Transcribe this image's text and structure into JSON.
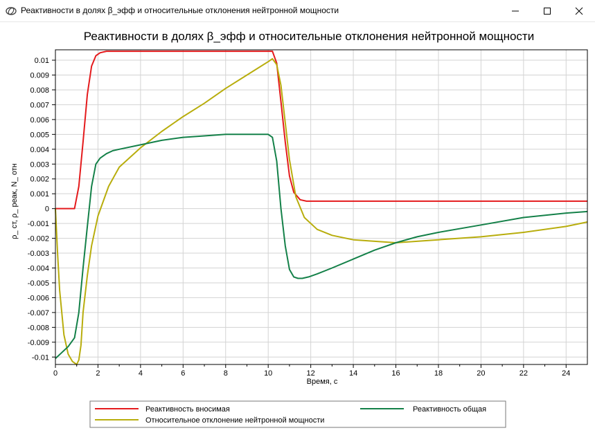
{
  "window": {
    "title": "Реактивности в долях β_эфф и относительные отклонения нейтронной мощности",
    "icon": "app-logo-icon",
    "controls": [
      "minimize-icon",
      "maximize-icon",
      "close-icon"
    ]
  },
  "colors": {
    "red": "#e41a1c",
    "green": "#138048",
    "yellow": "#b8ad0c",
    "grid": "#d3d3d3"
  },
  "chart_data": {
    "type": "line",
    "title": "Реактивности в долях β_эфф и относительные отклонения нейтронной мощности",
    "xlabel": "Время, с",
    "ylabel": "ρ_ ст, ρ_ реак, N_ отн",
    "xlim": [
      0,
      25
    ],
    "ylim": [
      -0.0105,
      0.0107
    ],
    "xticks": [
      0,
      2,
      4,
      6,
      8,
      10,
      12,
      14,
      16,
      18,
      20,
      22,
      24
    ],
    "xtick_labels": [
      "0",
      "2",
      "4",
      "6",
      "8",
      "10",
      "12",
      "14",
      "16",
      "18",
      "20",
      "22",
      "24"
    ],
    "yticks": [
      0.01,
      0.009,
      0.008,
      0.007,
      0.006,
      0.005,
      0.004,
      0.003,
      0.002,
      0.001,
      0,
      -0.001,
      -0.002,
      -0.003,
      -0.004,
      -0.005,
      -0.006,
      -0.007,
      -0.008,
      -0.009,
      -0.01
    ],
    "ytick_labels": [
      "0.01",
      "0.009",
      "0.008",
      "0.007",
      "0.006",
      "0.005",
      "0.004",
      "0.003",
      "0.002",
      "0.001",
      "0",
      "-0.001",
      "-0.002",
      "-0.003",
      "-0.004",
      "-0.005",
      "-0.006",
      "-0.007",
      "-0.008",
      "-0.009",
      "-0.01"
    ],
    "grid": true,
    "legend_position": "bottom",
    "series": [
      {
        "name": "Реактивность вносимая",
        "color": "#e41a1c",
        "x": [
          0,
          0.9,
          1.1,
          1.3,
          1.5,
          1.7,
          1.9,
          2.1,
          2.4,
          2.7,
          10.2,
          10.4,
          10.6,
          10.8,
          11.0,
          11.2,
          11.5,
          11.8,
          25
        ],
        "y": [
          0,
          0,
          0.0015,
          0.0045,
          0.0077,
          0.0096,
          0.0103,
          0.0105,
          0.0106,
          0.0106,
          0.0106,
          0.0098,
          0.0072,
          0.0045,
          0.0022,
          0.0011,
          0.0006,
          0.0005,
          0.0005
        ]
      },
      {
        "name": "Относительное отклонение нейтронной мощности",
        "color": "#b8ad0c",
        "x": [
          0,
          0.1,
          0.2,
          0.4,
          0.6,
          0.8,
          1.0,
          1.1,
          1.2,
          1.3,
          1.5,
          1.7,
          2.0,
          2.5,
          3.0,
          4.0,
          5.0,
          6.0,
          7.0,
          8.0,
          9.0,
          10.0,
          10.2,
          10.4,
          10.6,
          10.8,
          11.0,
          11.3,
          11.7,
          12.3,
          13.0,
          14.0,
          15.0,
          16.0,
          17.0,
          18.0,
          20.0,
          22.0,
          24.0,
          25.0
        ],
        "y": [
          0,
          -0.003,
          -0.0055,
          -0.0085,
          -0.0098,
          -0.0103,
          -0.0105,
          -0.0102,
          -0.0092,
          -0.007,
          -0.0045,
          -0.0025,
          -0.0005,
          0.0015,
          0.0028,
          0.0041,
          0.0052,
          0.0062,
          0.0071,
          0.0081,
          0.009,
          0.0099,
          0.0101,
          0.0097,
          0.0083,
          0.0058,
          0.0033,
          0.0008,
          -0.0006,
          -0.0014,
          -0.0018,
          -0.0021,
          -0.0022,
          -0.0023,
          -0.0022,
          -0.0021,
          -0.0019,
          -0.0016,
          -0.0012,
          -0.0009
        ]
      },
      {
        "name": "Реактивность общая",
        "color": "#138048",
        "x": [
          0,
          0.3,
          0.6,
          0.9,
          1.1,
          1.3,
          1.5,
          1.7,
          1.9,
          2.1,
          2.4,
          2.7,
          3.0,
          4.0,
          5.0,
          6.0,
          7.0,
          8.0,
          9.0,
          10.0,
          10.2,
          10.4,
          10.6,
          10.8,
          11.0,
          11.2,
          11.4,
          11.6,
          11.9,
          12.3,
          13.0,
          14.0,
          15.0,
          16.0,
          17.0,
          18.0,
          20.0,
          22.0,
          24.0,
          25.0
        ],
        "y": [
          -0.0101,
          -0.0097,
          -0.0093,
          -0.0087,
          -0.007,
          -0.004,
          -0.0012,
          0.0015,
          0.003,
          0.0034,
          0.0037,
          0.0039,
          0.004,
          0.0043,
          0.0046,
          0.0048,
          0.0049,
          0.005,
          0.005,
          0.005,
          0.0048,
          0.0032,
          0.0,
          -0.0025,
          -0.0041,
          -0.0046,
          -0.0047,
          -0.0047,
          -0.0046,
          -0.0044,
          -0.004,
          -0.0034,
          -0.0028,
          -0.0023,
          -0.0019,
          -0.0016,
          -0.0011,
          -0.0006,
          -0.0003,
          -0.0002
        ]
      }
    ]
  }
}
